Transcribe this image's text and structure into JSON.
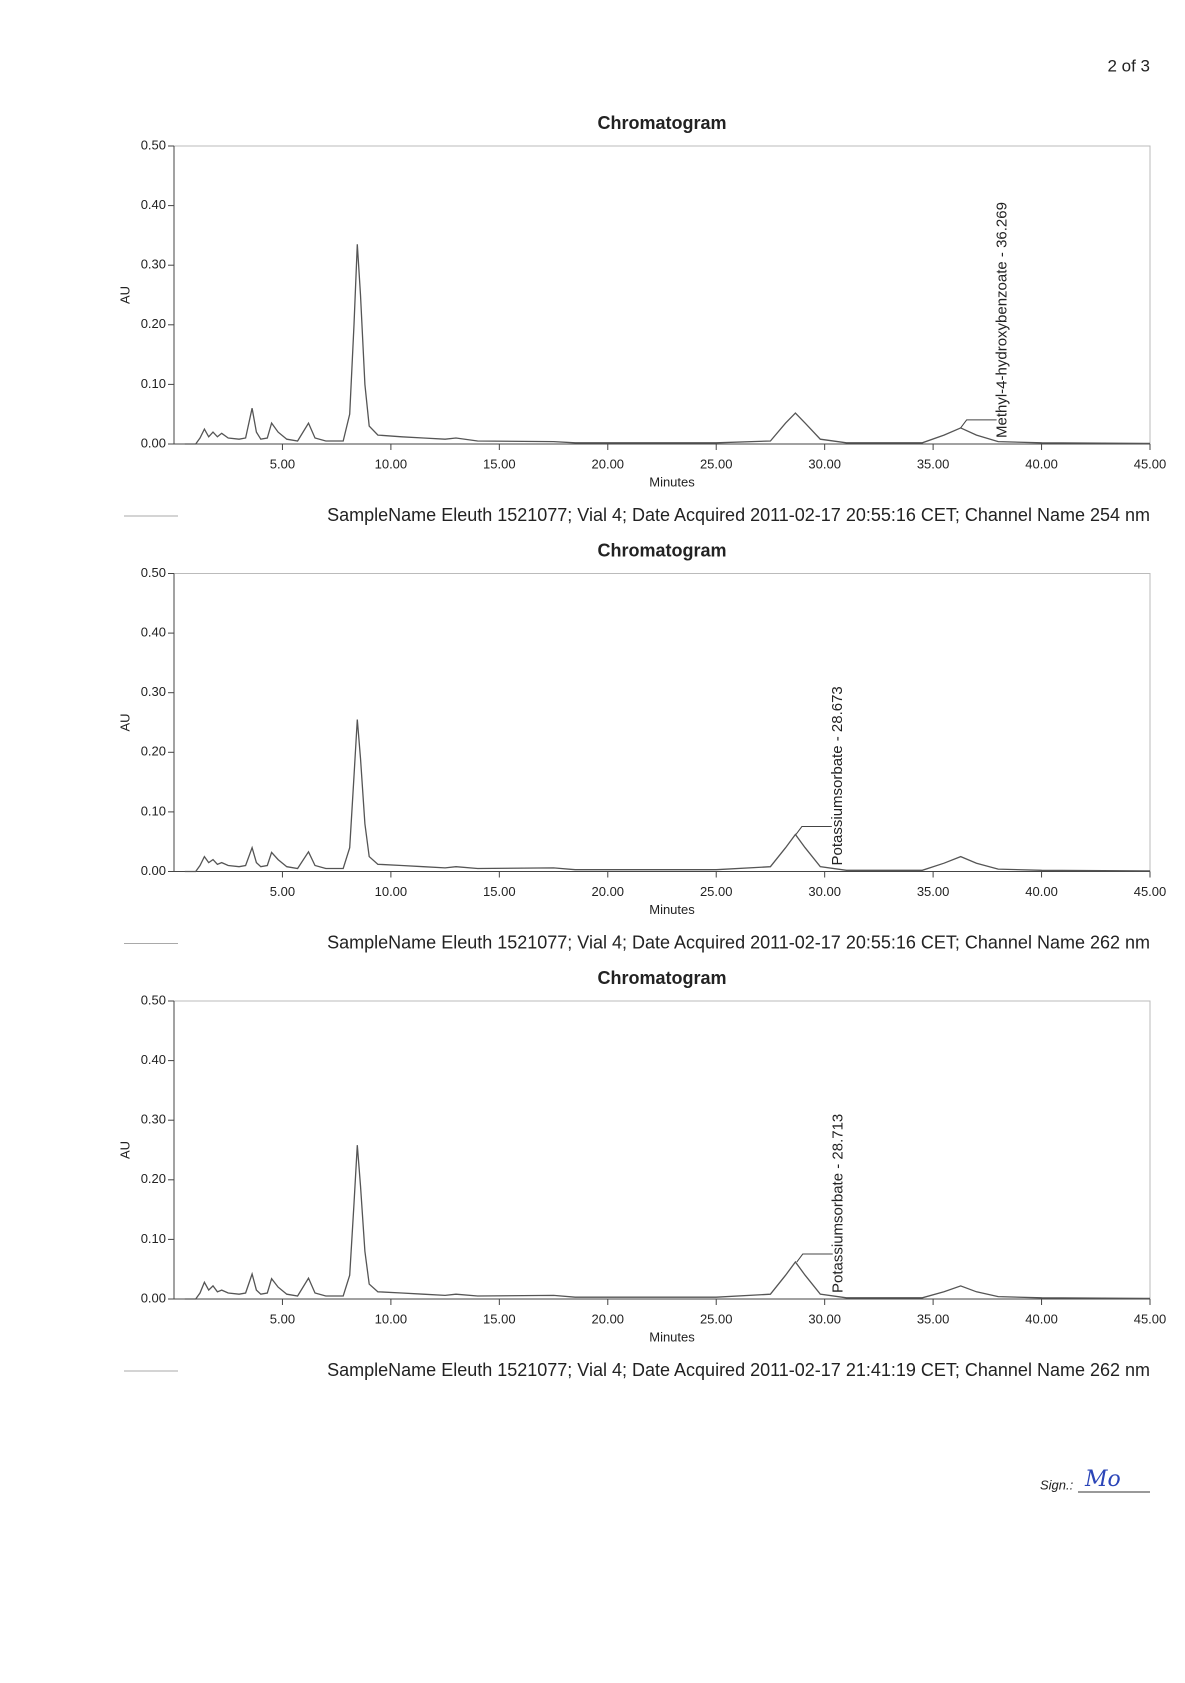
{
  "page_number": "2 of 3",
  "signature_label": "Sign.:",
  "signature": "Mo",
  "chart_data": [
    {
      "type": "line",
      "title": "Chromatogram",
      "x_label": "Minutes",
      "y_label": "AU",
      "xlim": [
        0,
        45
      ],
      "ylim": [
        0,
        0.5
      ],
      "xticks": [
        {
          "value": 5,
          "label": "5.00"
        },
        {
          "value": 10,
          "label": "10.00"
        },
        {
          "value": 15,
          "label": "15.00"
        },
        {
          "value": 20,
          "label": "20.00"
        },
        {
          "value": 25,
          "label": "25.00"
        },
        {
          "value": 30,
          "label": "30.00"
        },
        {
          "value": 35,
          "label": "35.00"
        },
        {
          "value": 40,
          "label": "40.00"
        },
        {
          "value": 45,
          "label": "45.00"
        }
      ],
      "yticks": [
        {
          "value": 0,
          "label": "0.00"
        },
        {
          "value": 0.1,
          "label": "0.10"
        },
        {
          "value": 0.2,
          "label": "0.20"
        },
        {
          "value": 0.3,
          "label": "0.30"
        },
        {
          "value": 0.4,
          "label": "0.40"
        },
        {
          "value": 0.5,
          "label": "0.50"
        }
      ],
      "x": [
        0.5,
        1.0,
        1.2,
        1.4,
        1.6,
        1.8,
        2.0,
        2.2,
        2.5,
        3.0,
        3.3,
        3.6,
        3.8,
        4.0,
        4.3,
        4.5,
        4.8,
        5.2,
        5.7,
        6.2,
        6.5,
        7.0,
        7.8,
        8.1,
        8.3,
        8.45,
        8.6,
        8.8,
        9.0,
        9.4,
        10.5,
        11.5,
        12.5,
        13.0,
        14.0,
        17.5,
        18.5,
        25.0,
        27.5,
        28.2,
        28.65,
        29.1,
        29.8,
        31.0,
        34.5,
        35.5,
        36.27,
        37.0,
        38.0,
        40.0,
        45.0
      ],
      "series": [
        {
          "name": "SampleName Eleuth 1521077; Vial 4; Date Acquired 2011-02-17 20:55:16 CET; Channel Name 254 nm",
          "color": "#555555",
          "values": [
            0,
            0,
            0.01,
            0.025,
            0.012,
            0.02,
            0.012,
            0.018,
            0.01,
            0.008,
            0.01,
            0.06,
            0.02,
            0.008,
            0.01,
            0.035,
            0.02,
            0.008,
            0.005,
            0.035,
            0.01,
            0.005,
            0.005,
            0.05,
            0.2,
            0.335,
            0.25,
            0.1,
            0.03,
            0.015,
            0.012,
            0.01,
            0.008,
            0.01,
            0.005,
            0.004,
            0.002,
            0.002,
            0.005,
            0.035,
            0.052,
            0.035,
            0.008,
            0.002,
            0.002,
            0.015,
            0.027,
            0.015,
            0.004,
            0.002,
            0.001
          ]
        }
      ],
      "annotations": [
        {
          "text": "Methyl-4-hydroxybenzoate - 36.269",
          "x": 36.269,
          "y": 0.027
        }
      ]
    },
    {
      "type": "line",
      "title": "Chromatogram",
      "x_label": "Minutes",
      "y_label": "AU",
      "xlim": [
        0,
        45
      ],
      "ylim": [
        0,
        0.5
      ],
      "xticks": [
        {
          "value": 5,
          "label": "5.00"
        },
        {
          "value": 10,
          "label": "10.00"
        },
        {
          "value": 15,
          "label": "15.00"
        },
        {
          "value": 20,
          "label": "20.00"
        },
        {
          "value": 25,
          "label": "25.00"
        },
        {
          "value": 30,
          "label": "30.00"
        },
        {
          "value": 35,
          "label": "35.00"
        },
        {
          "value": 40,
          "label": "40.00"
        },
        {
          "value": 45,
          "label": "45.00"
        }
      ],
      "yticks": [
        {
          "value": 0,
          "label": "0.00"
        },
        {
          "value": 0.1,
          "label": "0.10"
        },
        {
          "value": 0.2,
          "label": "0.20"
        },
        {
          "value": 0.3,
          "label": "0.30"
        },
        {
          "value": 0.4,
          "label": "0.40"
        },
        {
          "value": 0.5,
          "label": "0.50"
        }
      ],
      "x": [
        0.5,
        1.0,
        1.2,
        1.4,
        1.6,
        1.8,
        2.0,
        2.2,
        2.5,
        3.0,
        3.3,
        3.6,
        3.8,
        4.0,
        4.3,
        4.5,
        4.8,
        5.2,
        5.7,
        6.2,
        6.5,
        7.0,
        7.8,
        8.1,
        8.3,
        8.45,
        8.6,
        8.8,
        9.0,
        9.4,
        10.5,
        11.5,
        12.5,
        13.0,
        14.0,
        17.5,
        18.5,
        25.0,
        27.5,
        28.2,
        28.65,
        29.1,
        29.8,
        31.0,
        34.5,
        35.5,
        36.27,
        37.0,
        38.0,
        40.0,
        45.0
      ],
      "series": [
        {
          "name": "SampleName Eleuth 1521077; Vial 4; Date Acquired 2011-02-17 20:55:16 CET; Channel Name 262 nm",
          "color": "#555555",
          "values": [
            0,
            0,
            0.01,
            0.025,
            0.015,
            0.02,
            0.012,
            0.015,
            0.01,
            0.008,
            0.01,
            0.04,
            0.015,
            0.008,
            0.01,
            0.032,
            0.02,
            0.008,
            0.005,
            0.033,
            0.01,
            0.005,
            0.005,
            0.04,
            0.16,
            0.255,
            0.19,
            0.08,
            0.025,
            0.012,
            0.01,
            0.008,
            0.006,
            0.008,
            0.005,
            0.006,
            0.003,
            0.003,
            0.008,
            0.04,
            0.062,
            0.04,
            0.008,
            0.002,
            0.002,
            0.014,
            0.025,
            0.014,
            0.004,
            0.002,
            0.001
          ]
        }
      ],
      "annotations": [
        {
          "text": "Potassiumsorbate - 28.673",
          "x": 28.673,
          "y": 0.062
        }
      ]
    },
    {
      "type": "line",
      "title": "Chromatogram",
      "x_label": "Minutes",
      "y_label": "AU",
      "xlim": [
        0,
        45
      ],
      "ylim": [
        0,
        0.5
      ],
      "xticks": [
        {
          "value": 5,
          "label": "5.00"
        },
        {
          "value": 10,
          "label": "10.00"
        },
        {
          "value": 15,
          "label": "15.00"
        },
        {
          "value": 20,
          "label": "20.00"
        },
        {
          "value": 25,
          "label": "25.00"
        },
        {
          "value": 30,
          "label": "30.00"
        },
        {
          "value": 35,
          "label": "35.00"
        },
        {
          "value": 40,
          "label": "40.00"
        },
        {
          "value": 45,
          "label": "45.00"
        }
      ],
      "yticks": [
        {
          "value": 0,
          "label": "0.00"
        },
        {
          "value": 0.1,
          "label": "0.10"
        },
        {
          "value": 0.2,
          "label": "0.20"
        },
        {
          "value": 0.3,
          "label": "0.30"
        },
        {
          "value": 0.4,
          "label": "0.40"
        },
        {
          "value": 0.5,
          "label": "0.50"
        }
      ],
      "x": [
        0.5,
        1.0,
        1.2,
        1.4,
        1.6,
        1.8,
        2.0,
        2.2,
        2.5,
        3.0,
        3.3,
        3.6,
        3.8,
        4.0,
        4.3,
        4.5,
        4.8,
        5.2,
        5.7,
        6.2,
        6.5,
        7.0,
        7.8,
        8.1,
        8.3,
        8.45,
        8.6,
        8.8,
        9.0,
        9.4,
        10.5,
        11.5,
        12.5,
        13.0,
        14.0,
        17.5,
        18.5,
        25.0,
        27.5,
        28.2,
        28.65,
        29.1,
        29.8,
        31.0,
        34.5,
        35.5,
        36.27,
        37.0,
        38.0,
        40.0,
        45.0
      ],
      "series": [
        {
          "name": "SampleName Eleuth 1521077; Vial 4; Date Acquired 2011-02-17 21:41:19 CET; Channel Name 262 nm",
          "color": "#555555",
          "values": [
            0,
            0,
            0.01,
            0.028,
            0.015,
            0.022,
            0.012,
            0.015,
            0.01,
            0.008,
            0.01,
            0.042,
            0.015,
            0.008,
            0.01,
            0.034,
            0.02,
            0.008,
            0.005,
            0.035,
            0.01,
            0.005,
            0.005,
            0.04,
            0.16,
            0.258,
            0.19,
            0.08,
            0.025,
            0.012,
            0.01,
            0.008,
            0.006,
            0.008,
            0.005,
            0.006,
            0.003,
            0.003,
            0.008,
            0.04,
            0.062,
            0.04,
            0.008,
            0.002,
            0.002,
            0.012,
            0.022,
            0.012,
            0.004,
            0.002,
            0.001
          ]
        }
      ],
      "annotations": [
        {
          "text": "Potassiumsorbate - 28.713",
          "x": 28.713,
          "y": 0.062
        }
      ]
    }
  ]
}
